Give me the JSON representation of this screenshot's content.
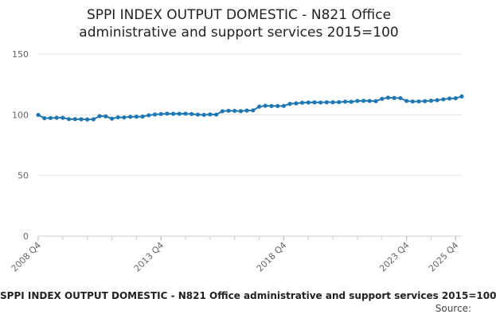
{
  "chart_data": {
    "type": "line",
    "title_line1": "SPPI INDEX OUTPUT DOMESTIC - N821 Office",
    "title_line2": "administrative and support services 2015=100",
    "caption": "SPPI INDEX OUTPUT DOMESTIC - N821 Office administrative and support services 2015=100",
    "source": "Source:",
    "xlabel": "",
    "ylabel": "",
    "ylim": [
      0,
      150
    ],
    "yticks": [
      0,
      50,
      100,
      150
    ],
    "xtick_labels": [
      "2008 Q4",
      "2013 Q4",
      "2018 Q4",
      "2023 Q4",
      "2025 Q4"
    ],
    "xtick_indices": [
      0,
      20,
      40,
      60,
      68
    ],
    "grid": "horizontal",
    "legend": "none",
    "series": [
      {
        "color": "#1f77b4",
        "x_start": "2008 Q4",
        "values": [
          99.9,
          97.2,
          97.3,
          97.5,
          97.5,
          96.4,
          96.4,
          96.3,
          96.1,
          96.3,
          98.9,
          98.7,
          96.8,
          97.9,
          97.8,
          98.3,
          98.4,
          98.5,
          99.6,
          100.2,
          100.6,
          100.9,
          100.8,
          100.8,
          100.9,
          100.6,
          100.1,
          99.9,
          100.3,
          100.1,
          102.9,
          103.3,
          103.2,
          103.0,
          103.5,
          103.6,
          106.7,
          107.4,
          107.2,
          107.2,
          107.3,
          109.0,
          109.4,
          109.9,
          110.1,
          110.2,
          110.1,
          110.3,
          110.3,
          110.4,
          110.8,
          110.7,
          111.4,
          111.5,
          111.4,
          111.2,
          113.1,
          114.1,
          113.8,
          113.7,
          111.4,
          110.9,
          111.0,
          111.2,
          111.6,
          112.0,
          112.7,
          113.4,
          113.6,
          115.1
        ]
      }
    ]
  }
}
